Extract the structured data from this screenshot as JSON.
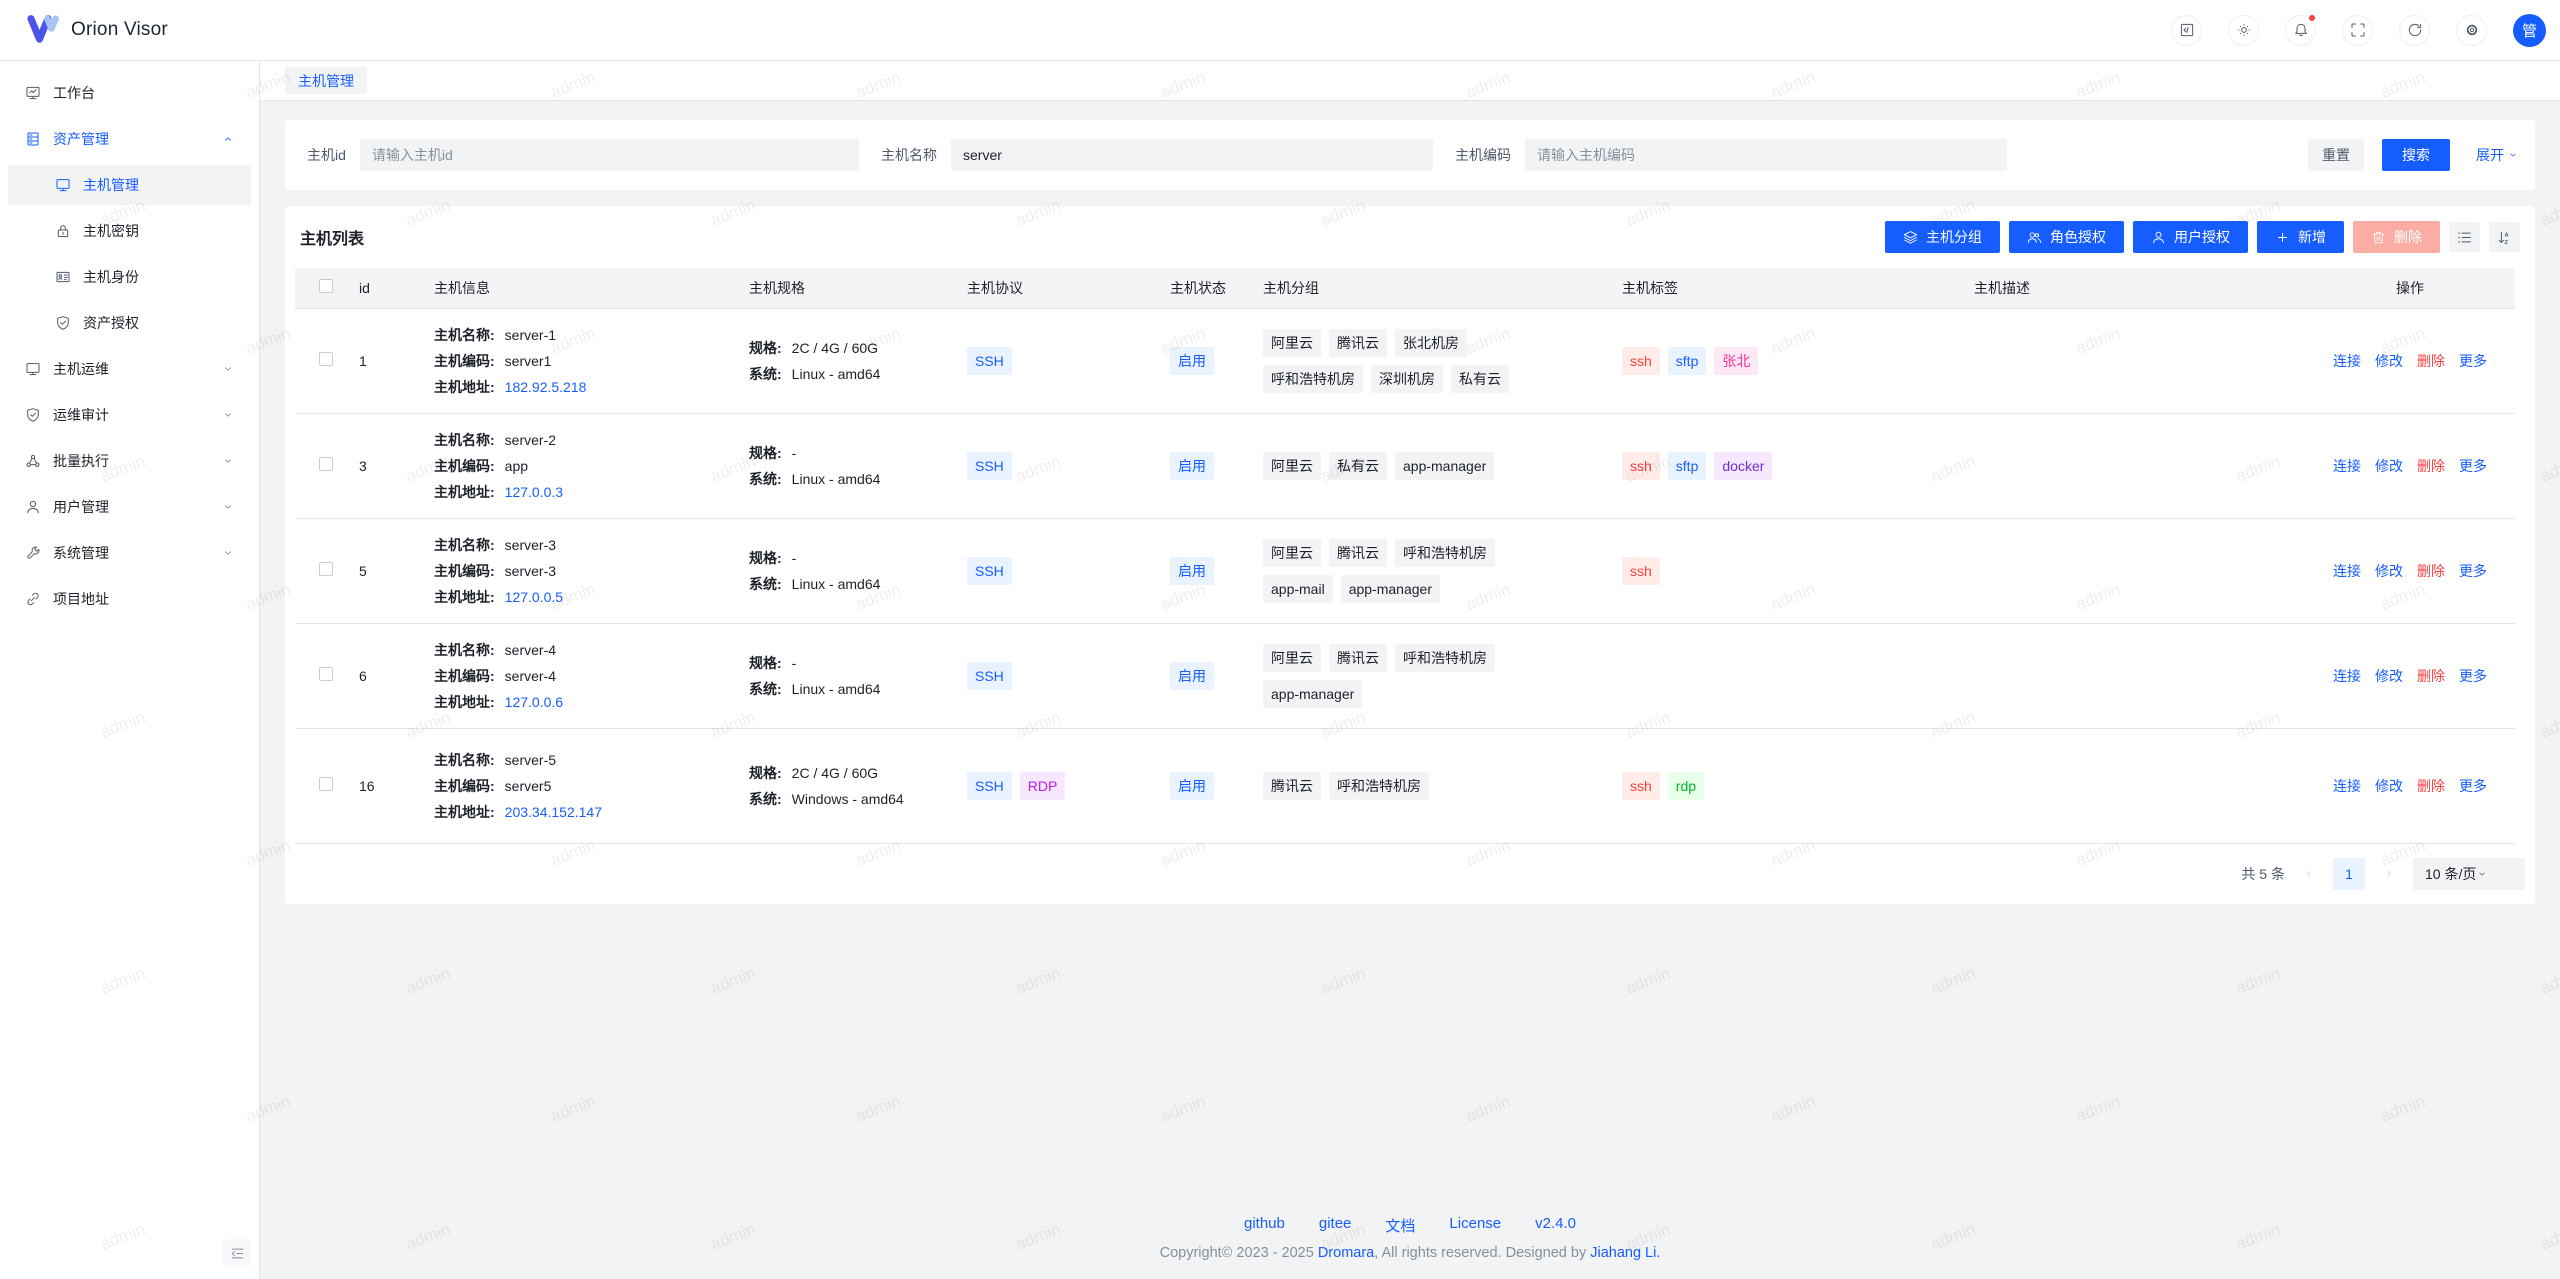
{
  "app": {
    "name": "Orion Visor",
    "avatar_text": "管"
  },
  "colors": {
    "primary": "#165dff",
    "danger": "#f53f3f",
    "danger_disabled": "#fbaca3",
    "success": "#00b42a",
    "magenta": "#f5319d",
    "purple": "#722ed1",
    "pinkpurple": "#b71de8",
    "page_bg": "#f2f3f5"
  },
  "topbar": {
    "buttons": [
      {
        "key": "code",
        "icon": "code-icon"
      },
      {
        "key": "brightness",
        "icon": "brightness-icon"
      },
      {
        "key": "notifications",
        "icon": "notification-icon",
        "badge": true
      },
      {
        "key": "fullscreen",
        "icon": "fullscreen-icon"
      },
      {
        "key": "refresh",
        "icon": "refresh-icon"
      },
      {
        "key": "settings",
        "icon": "gear-icon"
      }
    ]
  },
  "tabbar": {
    "tabs": [
      {
        "label": "主机管理",
        "active": true
      }
    ]
  },
  "sidebar": {
    "items": [
      {
        "key": "workbench",
        "label": "工作台",
        "icon": "workbench-icon"
      },
      {
        "key": "asset-manage",
        "label": "资产管理",
        "icon": "asset-icon",
        "expanded": true,
        "active": true,
        "children": [
          {
            "key": "host-manage",
            "label": "主机管理",
            "icon": "host-icon",
            "selected": true
          },
          {
            "key": "host-key",
            "label": "主机密钥",
            "icon": "lock-icon"
          },
          {
            "key": "host-identity",
            "label": "主机身份",
            "icon": "identity-card-icon"
          },
          {
            "key": "asset-grant",
            "label": "资产授权",
            "icon": "shield-check-icon"
          }
        ]
      },
      {
        "key": "host-ops",
        "label": "主机运维",
        "icon": "monitor-icon",
        "collapsible": true
      },
      {
        "key": "ops-audit",
        "label": "运维审计",
        "icon": "shield-check-icon",
        "collapsible": true
      },
      {
        "key": "batch-exec",
        "label": "批量执行",
        "icon": "cluster-icon",
        "collapsible": true
      },
      {
        "key": "user-manage",
        "label": "用户管理",
        "icon": "user-icon",
        "collapsible": true
      },
      {
        "key": "system-manage",
        "label": "系统管理",
        "icon": "wrench-icon",
        "collapsible": true
      },
      {
        "key": "project-url",
        "label": "项目地址",
        "icon": "link-icon"
      }
    ]
  },
  "search": {
    "fields": [
      {
        "key": "host-id",
        "label": "主机id",
        "placeholder": "请输入主机id",
        "value": ""
      },
      {
        "key": "host-name",
        "label": "主机名称",
        "placeholder": "",
        "value": "server"
      },
      {
        "key": "host-code",
        "label": "主机编码",
        "placeholder": "请输入主机编码",
        "value": ""
      }
    ],
    "reset_label": "重置",
    "search_label": "搜索",
    "expand_label": "展开"
  },
  "host_list": {
    "title": "主机列表",
    "toolbar": [
      {
        "key": "host-group",
        "label": "主机分组",
        "icon": "layers-icon",
        "style": "primary"
      },
      {
        "key": "role-grant",
        "label": "角色授权",
        "icon": "user-group-icon",
        "style": "primary"
      },
      {
        "key": "user-grant",
        "label": "用户授权",
        "icon": "user-icon",
        "style": "primary"
      },
      {
        "key": "add",
        "label": "新增",
        "icon": "plus-icon",
        "style": "primary"
      },
      {
        "key": "delete",
        "label": "删除",
        "icon": "trash-icon",
        "style": "danger-disabled"
      }
    ],
    "columns": [
      "id",
      "主机信息",
      "主机规格",
      "主机协议",
      "主机状态",
      "主机分组",
      "主机标签",
      "主机描述",
      "操作"
    ],
    "info_labels": {
      "name": "主机名称:",
      "code": "主机编码:",
      "address": "主机地址:"
    },
    "spec_labels": {
      "spec": "规格:",
      "system": "系统:"
    },
    "row_actions": [
      {
        "key": "connect",
        "label": "连接",
        "style": "link"
      },
      {
        "key": "edit",
        "label": "修改",
        "style": "link"
      },
      {
        "key": "delete",
        "label": "删除",
        "style": "danger"
      },
      {
        "key": "more",
        "label": "更多",
        "style": "link"
      }
    ],
    "rows": [
      {
        "id": "1",
        "name": "server-1",
        "code": "server1",
        "address": "182.92.5.218",
        "spec": "2C / 4G / 60G",
        "system": "Linux - amd64",
        "protocols": [
          {
            "label": "SSH",
            "color": "blue"
          }
        ],
        "status": "启用",
        "groups": [
          "阿里云",
          "腾讯云",
          "张北机房",
          "呼和浩特机房",
          "深圳机房",
          "私有云"
        ],
        "tags": [
          {
            "label": "ssh",
            "color": "red"
          },
          {
            "label": "sftp",
            "color": "blue"
          },
          {
            "label": "张北",
            "color": "magenta"
          }
        ],
        "description": ""
      },
      {
        "id": "3",
        "name": "server-2",
        "code": "app",
        "address": "127.0.0.3",
        "spec": "-",
        "system": "Linux - amd64",
        "protocols": [
          {
            "label": "SSH",
            "color": "blue"
          }
        ],
        "status": "启用",
        "groups": [
          "阿里云",
          "私有云",
          "app-manager"
        ],
        "tags": [
          {
            "label": "ssh",
            "color": "red"
          },
          {
            "label": "sftp",
            "color": "blue"
          },
          {
            "label": "docker",
            "color": "purple"
          }
        ],
        "description": ""
      },
      {
        "id": "5",
        "name": "server-3",
        "code": "server-3",
        "address": "127.0.0.5",
        "spec": "-",
        "system": "Linux - amd64",
        "protocols": [
          {
            "label": "SSH",
            "color": "blue"
          }
        ],
        "status": "启用",
        "groups": [
          "阿里云",
          "腾讯云",
          "呼和浩特机房",
          "app-mail",
          "app-manager"
        ],
        "tags": [
          {
            "label": "ssh",
            "color": "red"
          }
        ],
        "description": ""
      },
      {
        "id": "6",
        "name": "server-4",
        "code": "server-4",
        "address": "127.0.0.6",
        "spec": "-",
        "system": "Linux - amd64",
        "protocols": [
          {
            "label": "SSH",
            "color": "blue"
          }
        ],
        "status": "启用",
        "groups": [
          "阿里云",
          "腾讯云",
          "呼和浩特机房",
          "app-manager"
        ],
        "tags": [],
        "description": ""
      },
      {
        "id": "16",
        "name": "server-5",
        "code": "server5",
        "address": "203.34.152.147",
        "spec": "2C / 4G / 60G",
        "system": "Windows - amd64",
        "protocols": [
          {
            "label": "SSH",
            "color": "blue"
          },
          {
            "label": "RDP",
            "color": "pinkpurple"
          }
        ],
        "status": "启用",
        "groups": [
          "腾讯云",
          "呼和浩特机房"
        ],
        "tags": [
          {
            "label": "ssh",
            "color": "red"
          },
          {
            "label": "rdp",
            "color": "green"
          }
        ],
        "description": ""
      }
    ]
  },
  "pagination": {
    "total": "共 5 条",
    "current_page": "1",
    "page_size": "10 条/页"
  },
  "footer": {
    "links": [
      "github",
      "gitee",
      "文档",
      "License",
      "v2.4.0"
    ],
    "copyright": {
      "prefix": "Copyright© 2023 - 2025 ",
      "org": "Dromara",
      "middle": ", All rights reserved. Designed by ",
      "author": "Jiahang Li."
    }
  },
  "watermark": {
    "text": "admin"
  }
}
